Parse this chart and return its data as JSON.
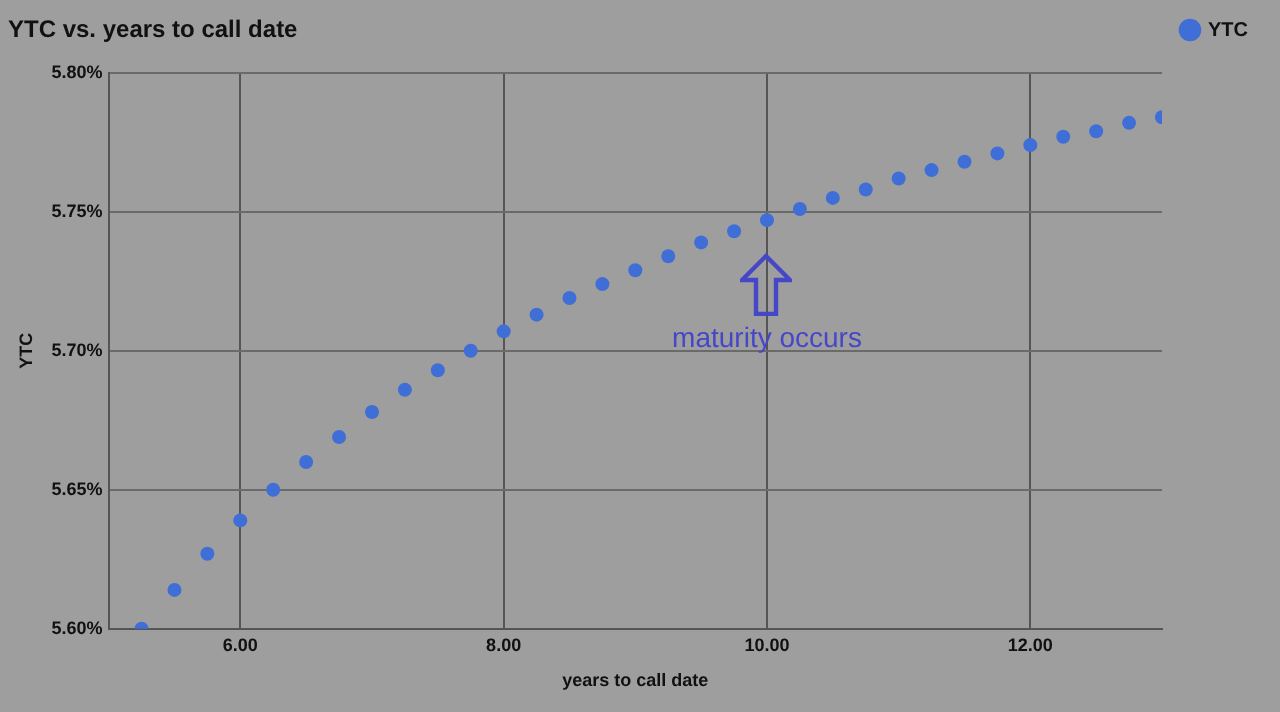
{
  "chart_data": {
    "type": "scatter",
    "title": "YTC vs. years to call date",
    "xlabel": "years to call date",
    "ylabel": "YTC",
    "x": [
      5.25,
      5.5,
      5.75,
      6.0,
      6.25,
      6.5,
      6.75,
      7.0,
      7.25,
      7.5,
      7.75,
      8.0,
      8.25,
      8.5,
      8.75,
      9.0,
      9.25,
      9.5,
      9.75,
      10.0,
      10.25,
      10.5,
      10.75,
      11.0,
      11.25,
      11.5,
      11.75,
      12.0,
      12.25,
      12.5,
      12.75,
      13.0
    ],
    "series": [
      {
        "name": "YTC",
        "color": "#3f6fd6",
        "values": [
          5.6,
          5.614,
          5.627,
          5.639,
          5.65,
          5.66,
          5.669,
          5.678,
          5.686,
          5.693,
          5.7,
          5.707,
          5.713,
          5.719,
          5.724,
          5.729,
          5.734,
          5.739,
          5.743,
          5.747,
          5.751,
          5.755,
          5.758,
          5.762,
          5.765,
          5.768,
          5.771,
          5.774,
          5.777,
          5.779,
          5.782,
          5.784
        ]
      }
    ],
    "xlim": [
      5,
      13
    ],
    "xticks": [
      {
        "value": 6,
        "label": "6.00"
      },
      {
        "value": 8,
        "label": "8.00"
      },
      {
        "value": 10,
        "label": "10.00"
      },
      {
        "value": 12,
        "label": "12.00"
      }
    ],
    "ylim": [
      5.6,
      5.8
    ],
    "yticks": [
      {
        "value": 5.6,
        "label": "5.60%"
      },
      {
        "value": 5.65,
        "label": "5.65%"
      },
      {
        "value": 5.7,
        "label": "5.70%"
      },
      {
        "value": 5.75,
        "label": "5.75%"
      },
      {
        "value": 5.8,
        "label": "5.80%"
      }
    ],
    "grid": true,
    "legend": "top right",
    "marker": "circle",
    "annotations": [
      "maturity occurs"
    ]
  }
}
